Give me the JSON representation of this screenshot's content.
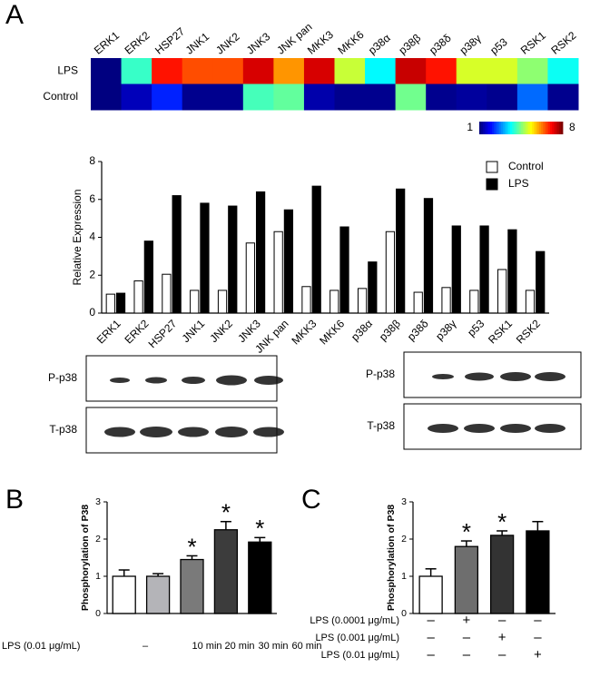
{
  "panel_labels": [
    "A",
    "B",
    "C"
  ],
  "blots": [
    {
      "rows": [
        "P-p38",
        "T-p38"
      ]
    },
    {
      "rows": [
        "P-p38",
        "T-p38"
      ]
    }
  ],
  "chart_data": [
    {
      "type": "heatmap",
      "categories": [
        "ERK1",
        "ERK2",
        "HSP27",
        "JNK1",
        "JNK2",
        "JNK3",
        "JNK pan",
        "MKK3",
        "MKK6",
        "p38α",
        "p38β",
        "p38δ",
        "p38γ",
        "p53",
        "RSK1",
        "RSK2"
      ],
      "rows": [
        "LPS",
        "Control"
      ],
      "values": [
        [
          1.0,
          4.0,
          7.0,
          6.6,
          6.6,
          7.4,
          6.1,
          7.4,
          5.0,
          3.6,
          7.5,
          7.0,
          5.1,
          5.1,
          4.6,
          3.7
        ],
        [
          1.0,
          1.4,
          2.1,
          1.1,
          1.1,
          4.1,
          4.3,
          1.3,
          1.1,
          1.1,
          4.4,
          1.1,
          1.2,
          1.1,
          2.6,
          1.1
        ]
      ],
      "colormap": "jet",
      "colorbar": {
        "lim": [
          1,
          8
        ],
        "ticks": [
          1,
          8
        ]
      }
    },
    {
      "type": "bar",
      "ylabel": "Relative Expression",
      "categories": [
        "ERK1",
        "ERK2",
        "HSP27",
        "JNK1",
        "JNK2",
        "JNK3",
        "JNK pan",
        "MKK3",
        "MKK6",
        "p38α",
        "p38β",
        "p38δ",
        "p38γ",
        "p53",
        "RSK1",
        "RSK2"
      ],
      "series": [
        {
          "name": "Control",
          "color": "#ffffff",
          "values": [
            1.0,
            1.7,
            2.05,
            1.2,
            1.2,
            3.7,
            4.3,
            1.4,
            1.2,
            1.3,
            4.3,
            1.1,
            1.35,
            1.2,
            2.3,
            1.2
          ]
        },
        {
          "name": "LPS",
          "color": "#000000",
          "values": [
            1.05,
            3.8,
            6.2,
            5.8,
            5.65,
            6.4,
            5.45,
            6.7,
            4.55,
            2.7,
            6.55,
            6.05,
            4.6,
            4.6,
            4.4,
            3.25
          ]
        }
      ],
      "ylim": [
        0,
        8
      ],
      "yticks": [
        0,
        2,
        4,
        6,
        8
      ],
      "legend": "upper right"
    },
    {
      "type": "bar",
      "ylabel": "Phosphorylation of P38",
      "condition_label": "LPS (0.01 μg/mL)",
      "categories": [
        "–",
        "10 min",
        "20 min",
        "30 min",
        "60 min"
      ],
      "values": [
        1.0,
        1.0,
        1.45,
        2.25,
        1.92
      ],
      "errors": [
        0.17,
        0.07,
        0.1,
        0.22,
        0.12
      ],
      "colors": [
        "#ffffff",
        "#b4b4b8",
        "#7a7a7a",
        "#3c3c3c",
        "#000000"
      ],
      "significance": [
        null,
        null,
        "*",
        "*",
        "*"
      ],
      "ylim": [
        0,
        3
      ],
      "yticks": [
        0,
        1,
        2,
        3
      ]
    },
    {
      "type": "bar",
      "ylabel": "Phosphorylation of P38",
      "categories": [
        null,
        null,
        null,
        null
      ],
      "values": [
        1.0,
        1.8,
        2.1,
        2.22
      ],
      "errors": [
        0.2,
        0.15,
        0.12,
        0.25
      ],
      "colors": [
        "#ffffff",
        "#6e6e6e",
        "#333333",
        "#000000"
      ],
      "significance": [
        null,
        "*",
        "*",
        null
      ],
      "conditions": [
        {
          "label": "LPS (0.0001 μg/mL)",
          "signs": [
            "–",
            "+",
            "–",
            "–"
          ]
        },
        {
          "label": "LPS (0.001 μg/mL)",
          "signs": [
            "–",
            "–",
            "+",
            "–"
          ]
        },
        {
          "label": "LPS (0.01 μg/mL)",
          "signs": [
            "–",
            "–",
            "–",
            "+"
          ]
        }
      ],
      "ylim": [
        0,
        3
      ],
      "yticks": [
        0,
        1,
        2,
        3
      ]
    }
  ]
}
